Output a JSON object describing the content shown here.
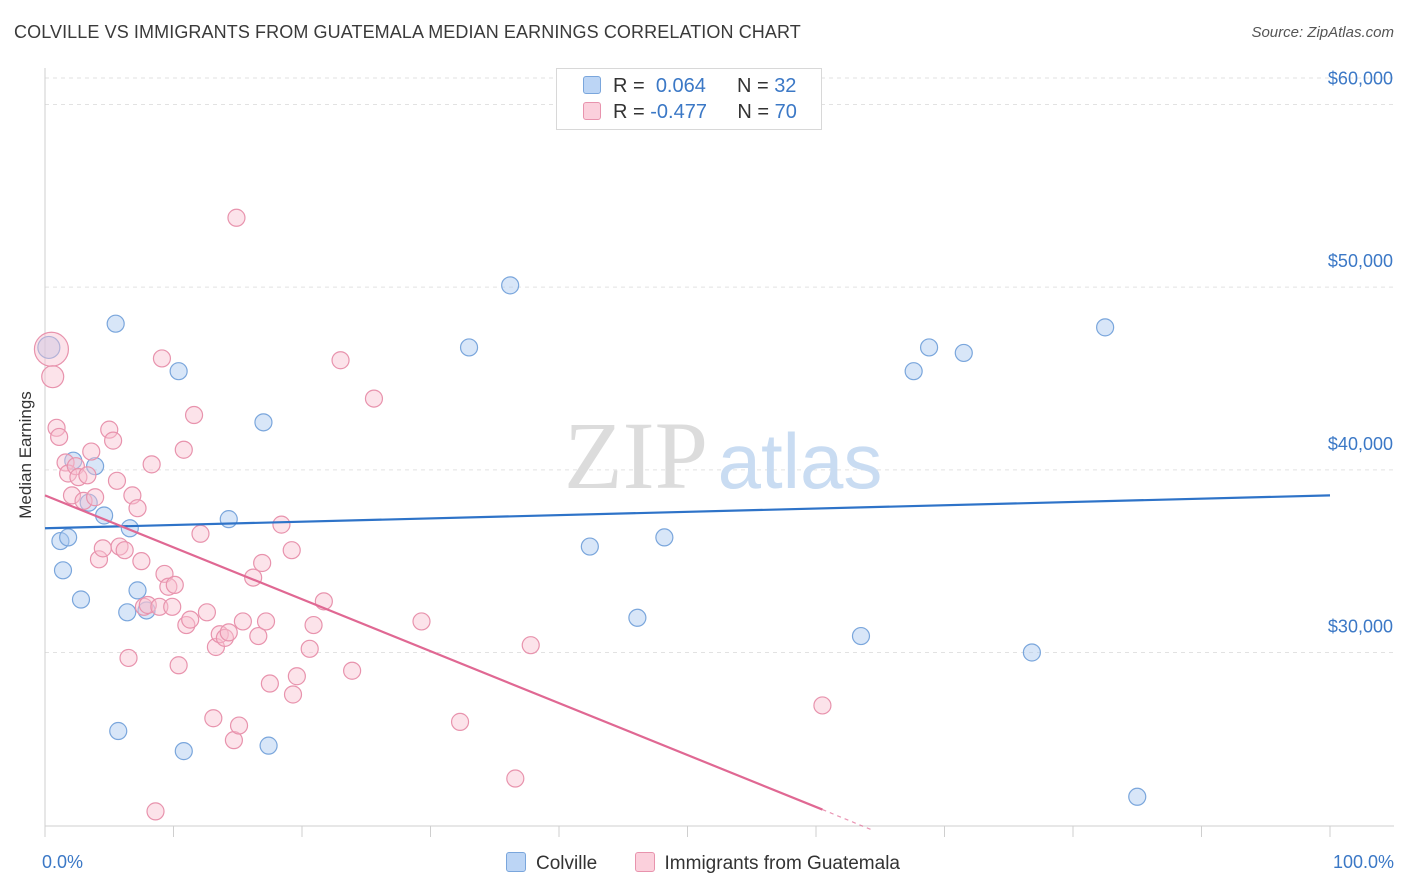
{
  "title": "COLVILLE VS IMMIGRANTS FROM GUATEMALA MEDIAN EARNINGS CORRELATION CHART",
  "source": "Source: ZipAtlas.com",
  "watermark": {
    "zip": "ZIP",
    "atlas": "atlas"
  },
  "legend": {
    "r_label": "R =",
    "n_label": "N =",
    "rows": [
      {
        "r": "0.064",
        "n": "32"
      },
      {
        "r": "-0.477",
        "n": "70"
      }
    ]
  },
  "chart_data": {
    "type": "scatter",
    "title": "COLVILLE VS IMMIGRANTS FROM GUATEMALA MEDIAN EARNINGS CORRELATION CHART",
    "xlabel": "",
    "ylabel": "Median Earnings",
    "xlim": [
      0,
      100
    ],
    "ylim": [
      20500,
      62000
    ],
    "x_tick_labels": [
      "0.0%",
      "100.0%"
    ],
    "y_ticks": [
      30000,
      40000,
      50000,
      60000
    ],
    "y_tick_labels": [
      "$30,000",
      "$40,000",
      "$50,000",
      "$60,000"
    ],
    "grid": true,
    "legend_position": "top-center",
    "series": [
      {
        "name": "Colville",
        "color": "#a9c8f0",
        "stroke": "#7aa6dc",
        "line_color": "#2e73c8",
        "points": [
          [
            0.3,
            46700
          ],
          [
            1.2,
            36100
          ],
          [
            1.4,
            34500
          ],
          [
            1.8,
            36300
          ],
          [
            2.2,
            40500
          ],
          [
            2.8,
            32900
          ],
          [
            3.4,
            38200
          ],
          [
            3.9,
            40200
          ],
          [
            4.6,
            37500
          ],
          [
            5.5,
            48000
          ],
          [
            5.7,
            25700
          ],
          [
            6.4,
            32200
          ],
          [
            6.6,
            36800
          ],
          [
            7.2,
            33400
          ],
          [
            7.9,
            32300
          ],
          [
            10.4,
            45400
          ],
          [
            10.8,
            24600
          ],
          [
            14.3,
            37300
          ],
          [
            17.0,
            42600
          ],
          [
            17.4,
            24900
          ],
          [
            33.0,
            46700
          ],
          [
            36.2,
            50100
          ],
          [
            42.4,
            35800
          ],
          [
            46.1,
            31900
          ],
          [
            48.2,
            36300
          ],
          [
            63.5,
            30900
          ],
          [
            67.6,
            45400
          ],
          [
            68.8,
            46700
          ],
          [
            71.5,
            46400
          ],
          [
            76.8,
            30000
          ],
          [
            82.5,
            47800
          ],
          [
            85.0,
            22100
          ]
        ],
        "trend": [
          [
            0,
            36800
          ],
          [
            100,
            38600
          ]
        ]
      },
      {
        "name": "Immigrants from Guatemala",
        "color": "#f8c0d0",
        "stroke": "#e893ad",
        "line_color": "#e06893",
        "points": [
          [
            0.5,
            46600
          ],
          [
            0.6,
            45100
          ],
          [
            0.9,
            42300
          ],
          [
            1.1,
            41800
          ],
          [
            1.6,
            40400
          ],
          [
            1.8,
            39800
          ],
          [
            2.1,
            38600
          ],
          [
            2.4,
            40200
          ],
          [
            2.6,
            39600
          ],
          [
            3.0,
            38300
          ],
          [
            3.3,
            39700
          ],
          [
            3.6,
            41000
          ],
          [
            3.9,
            38500
          ],
          [
            4.2,
            35100
          ],
          [
            4.5,
            35700
          ],
          [
            5.0,
            42200
          ],
          [
            5.3,
            41600
          ],
          [
            5.6,
            39400
          ],
          [
            5.8,
            35800
          ],
          [
            6.2,
            35600
          ],
          [
            6.5,
            29700
          ],
          [
            6.8,
            38600
          ],
          [
            7.2,
            37900
          ],
          [
            7.5,
            35000
          ],
          [
            7.7,
            32500
          ],
          [
            8.0,
            32600
          ],
          [
            8.3,
            40300
          ],
          [
            8.6,
            21300
          ],
          [
            8.9,
            32500
          ],
          [
            9.1,
            46100
          ],
          [
            9.3,
            34300
          ],
          [
            9.6,
            33600
          ],
          [
            9.9,
            32500
          ],
          [
            10.1,
            33700
          ],
          [
            10.4,
            29300
          ],
          [
            10.8,
            41100
          ],
          [
            11.0,
            31500
          ],
          [
            11.3,
            31800
          ],
          [
            11.6,
            43000
          ],
          [
            12.1,
            36500
          ],
          [
            12.6,
            32200
          ],
          [
            13.1,
            26400
          ],
          [
            13.3,
            30300
          ],
          [
            13.6,
            31000
          ],
          [
            14.0,
            30800
          ],
          [
            14.3,
            31100
          ],
          [
            14.7,
            25200
          ],
          [
            14.9,
            53800
          ],
          [
            15.1,
            26000
          ],
          [
            15.4,
            31700
          ],
          [
            16.2,
            34100
          ],
          [
            16.6,
            30900
          ],
          [
            16.9,
            34900
          ],
          [
            17.2,
            31700
          ],
          [
            17.5,
            28300
          ],
          [
            18.4,
            37000
          ],
          [
            19.2,
            35600
          ],
          [
            19.3,
            27700
          ],
          [
            19.6,
            28700
          ],
          [
            20.6,
            30200
          ],
          [
            20.9,
            31500
          ],
          [
            21.7,
            32800
          ],
          [
            23.0,
            46000
          ],
          [
            23.9,
            29000
          ],
          [
            25.6,
            43900
          ],
          [
            29.3,
            31700
          ],
          [
            32.3,
            26200
          ],
          [
            36.6,
            23100
          ],
          [
            37.8,
            30400
          ],
          [
            60.5,
            27100
          ]
        ],
        "trend": [
          [
            0,
            38600
          ],
          [
            60.5,
            21400
          ]
        ],
        "trend_dashed": [
          [
            60.5,
            21400
          ],
          [
            64.3,
            20300
          ]
        ]
      }
    ]
  }
}
